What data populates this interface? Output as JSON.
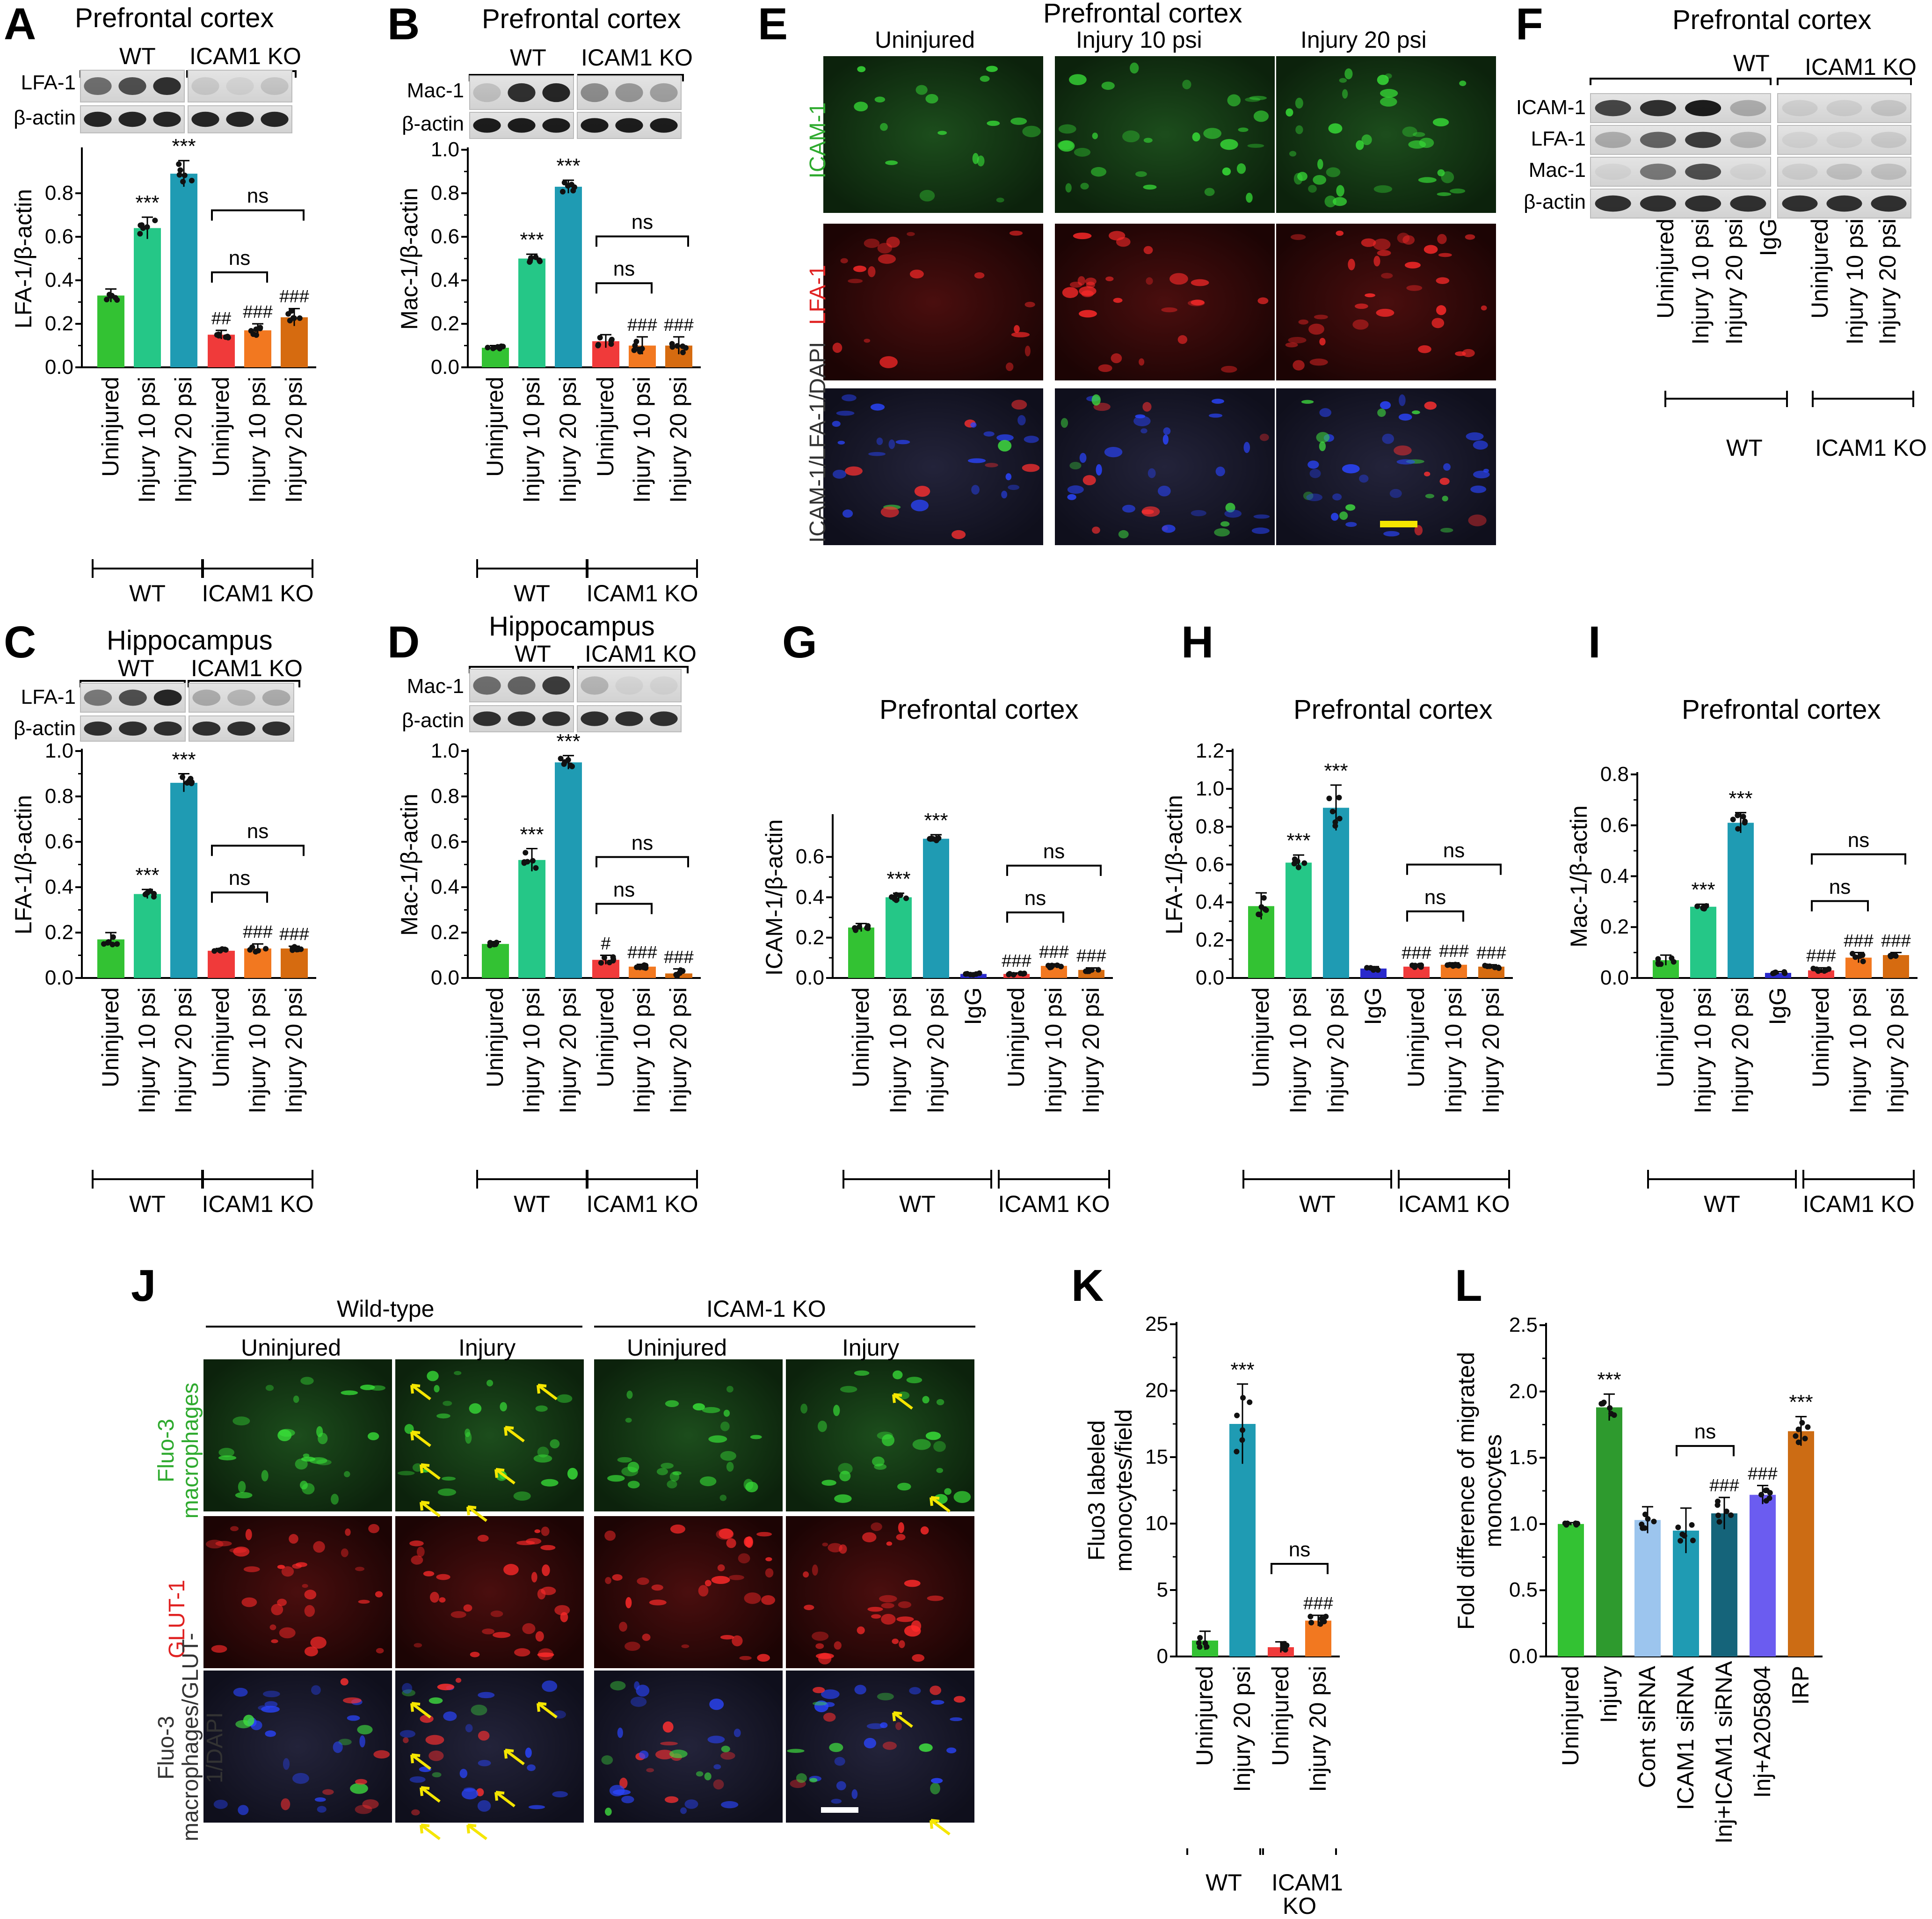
{
  "panels": {
    "A": {
      "label": "A",
      "title": "Prefrontal cortex",
      "groups": [
        "WT",
        "ICAM1 KO"
      ],
      "blots": [
        "LFA-1",
        "β-actin"
      ]
    },
    "B": {
      "label": "B",
      "title": "Prefrontal cortex",
      "groups": [
        "WT",
        "ICAM1 KO"
      ],
      "blots": [
        "Mac-1",
        "β-actin"
      ]
    },
    "C": {
      "label": "C",
      "title": "Hippocampus",
      "groups": [
        "WT",
        "ICAM1 KO"
      ],
      "blots": [
        "LFA-1",
        "β-actin"
      ]
    },
    "D": {
      "label": "D",
      "title": "Hippocampus",
      "groups": [
        "WT",
        "ICAM1 KO"
      ],
      "blots": [
        "Mac-1",
        "β-actin"
      ]
    },
    "E": {
      "label": "E",
      "title": "Prefrontal cortex",
      "columns": [
        "Uninjured",
        "Injury 10 psi",
        "Injury 20 psi"
      ],
      "rows": [
        "ICAM-1",
        "LFA-1",
        "ICAM-1/LFA-1/DAPI"
      ]
    },
    "F": {
      "label": "F",
      "title": "Prefrontal cortex",
      "groups": [
        "WT",
        "ICAM1 KO"
      ],
      "blots": [
        "ICAM-1",
        "LFA-1",
        "Mac-1",
        "β-actin"
      ],
      "lanes": [
        "Uninjured",
        "Injury 10 psi",
        "Injury 20 psi",
        "IgG",
        "Uninjured",
        "Injury 10 psi",
        "Injury 20 psi"
      ]
    },
    "G": {
      "label": "G"
    },
    "H": {
      "label": "H"
    },
    "I": {
      "label": "I"
    },
    "J": {
      "label": "J",
      "groups": [
        "Wild-type",
        "ICAM-1 KO"
      ],
      "columns": [
        "Uninjured",
        "Injury",
        "Uninjured",
        "Injury"
      ],
      "rows": [
        "Fluo-3 macrophages",
        "GLUT-1",
        "Fluo-3 macrophages/GLUT-1/DAPI"
      ]
    },
    "K": {
      "label": "K"
    },
    "L": {
      "label": "L"
    }
  },
  "colors": {
    "green": "#33c233",
    "mint": "#25c787",
    "teal": "#1f9bb3",
    "red": "#f03a3a",
    "orange": "#f27820",
    "brown": "#d66b10",
    "blue": "#2a2acc",
    "darkgreen": "#2e9a2e",
    "lightblue": "#9cc5ee",
    "darkteal": "#15647a",
    "violet": "#6b5cf0",
    "rust": "#cc6c14"
  },
  "chart_data": [
    {
      "panel": "A",
      "type": "bar",
      "ylabel": "LFA-1/β-actin",
      "ylim": [
        0,
        1.0
      ],
      "yticks": [
        "0.0",
        "0.2",
        "0.4",
        "0.6",
        "0.8"
      ],
      "categories": [
        "Uninjured",
        "Injury 10 psi",
        "Injury 20 psi",
        "Uninjured",
        "Injury 10 psi",
        "Injury 20 psi"
      ],
      "values": [
        0.33,
        0.64,
        0.89,
        0.15,
        0.17,
        0.23
      ],
      "errors": [
        0.03,
        0.05,
        0.06,
        0.02,
        0.03,
        0.04
      ],
      "colors": [
        "green",
        "mint",
        "teal",
        "red",
        "orange",
        "brown"
      ],
      "annotations": [
        "",
        "***",
        "***",
        "##",
        "###",
        "###"
      ],
      "groups": [
        {
          "name": "WT",
          "start": 0,
          "end": 2
        },
        {
          "name": "ICAM1 KO",
          "start": 3,
          "end": 5
        }
      ],
      "brackets": [
        {
          "from": 3,
          "to": 4,
          "label": "ns"
        },
        {
          "from": 3,
          "to": 5,
          "label": "ns"
        }
      ]
    },
    {
      "panel": "B",
      "type": "bar",
      "ylabel": "Mac-1/β-actin",
      "ylim": [
        0,
        1.0
      ],
      "yticks": [
        "0.0",
        "0.2",
        "0.4",
        "0.6",
        "0.8",
        "1.0"
      ],
      "categories": [
        "Uninjured",
        "Injury 10 psi",
        "Injury 20 psi",
        "Uninjured",
        "Injury 10 psi",
        "Injury 20 psi"
      ],
      "values": [
        0.09,
        0.5,
        0.83,
        0.12,
        0.1,
        0.1
      ],
      "errors": [
        0.01,
        0.02,
        0.03,
        0.03,
        0.04,
        0.04
      ],
      "colors": [
        "green",
        "mint",
        "teal",
        "red",
        "orange",
        "brown"
      ],
      "annotations": [
        "",
        "***",
        "***",
        "",
        "###",
        "###"
      ],
      "groups": [
        {
          "name": "WT",
          "start": 0,
          "end": 2
        },
        {
          "name": "ICAM1 KO",
          "start": 3,
          "end": 5
        }
      ],
      "brackets": [
        {
          "from": 3,
          "to": 4,
          "label": "ns"
        },
        {
          "from": 3,
          "to": 5,
          "label": "ns"
        }
      ]
    },
    {
      "panel": "C",
      "type": "bar",
      "ylabel": "LFA-1/β-actin",
      "ylim": [
        0,
        1.0
      ],
      "yticks": [
        "0.0",
        "0.2",
        "0.4",
        "0.6",
        "0.8",
        "1.0"
      ],
      "categories": [
        "Uninjured",
        "Injury 10 psi",
        "Injury 20 psi",
        "Uninjured",
        "Injury 10 psi",
        "Injury 20 psi"
      ],
      "values": [
        0.17,
        0.37,
        0.86,
        0.12,
        0.13,
        0.13
      ],
      "errors": [
        0.03,
        0.02,
        0.04,
        0.01,
        0.02,
        0.01
      ],
      "colors": [
        "green",
        "mint",
        "teal",
        "red",
        "orange",
        "brown"
      ],
      "annotations": [
        "",
        "***",
        "***",
        "",
        "###",
        "###"
      ],
      "groups": [
        {
          "name": "WT",
          "start": 0,
          "end": 2
        },
        {
          "name": "ICAM1 KO",
          "start": 3,
          "end": 5
        }
      ],
      "brackets": [
        {
          "from": 3,
          "to": 4,
          "label": "ns"
        },
        {
          "from": 3,
          "to": 5,
          "label": "ns"
        }
      ]
    },
    {
      "panel": "D",
      "type": "bar",
      "ylabel": "Mac-1/β-actin",
      "ylim": [
        0,
        1.0
      ],
      "yticks": [
        "0.0",
        "0.2",
        "0.4",
        "0.6",
        "0.8",
        "1.0"
      ],
      "categories": [
        "Uninjured",
        "Injury 10 psi",
        "Injury 20 psi",
        "Uninjured",
        "Injury 10 psi",
        "Injury 20 psi"
      ],
      "values": [
        0.15,
        0.52,
        0.95,
        0.08,
        0.05,
        0.02
      ],
      "errors": [
        0.01,
        0.05,
        0.03,
        0.02,
        0.01,
        0.02
      ],
      "colors": [
        "green",
        "mint",
        "teal",
        "red",
        "orange",
        "brown"
      ],
      "annotations": [
        "",
        "***",
        "***",
        "#",
        "###",
        "###"
      ],
      "groups": [
        {
          "name": "WT",
          "start": 0,
          "end": 2
        },
        {
          "name": "ICAM1 KO",
          "start": 3,
          "end": 5
        }
      ],
      "brackets": [
        {
          "from": 3,
          "to": 4,
          "label": "ns"
        },
        {
          "from": 3,
          "to": 5,
          "label": "ns"
        }
      ]
    },
    {
      "panel": "G",
      "type": "bar",
      "title": "Prefrontal cortex",
      "ylabel": "ICAM-1/β-actin",
      "ylim": [
        0,
        0.8
      ],
      "yticks": [
        "0.0",
        "0.2",
        "0.4",
        "0.6"
      ],
      "categories": [
        "Uninjured",
        "Injury 10 psi",
        "Injury 20 psi",
        "IgG",
        "Uninjured",
        "Injury 10 psi",
        "Injury 20 psi"
      ],
      "values": [
        0.25,
        0.4,
        0.69,
        0.02,
        0.02,
        0.06,
        0.04
      ],
      "errors": [
        0.02,
        0.02,
        0.02,
        0.005,
        0.005,
        0.01,
        0.01
      ],
      "colors": [
        "green",
        "mint",
        "teal",
        "blue",
        "red",
        "orange",
        "brown"
      ],
      "annotations": [
        "",
        "***",
        "***",
        "",
        "###",
        "###",
        "###"
      ],
      "groups": [
        {
          "name": "WT",
          "start": 0,
          "end": 3
        },
        {
          "name": "ICAM1 KO",
          "start": 4,
          "end": 6
        }
      ],
      "brackets": [
        {
          "from": 4,
          "to": 5,
          "label": "ns"
        },
        {
          "from": 4,
          "to": 6,
          "label": "ns"
        }
      ]
    },
    {
      "panel": "H",
      "type": "bar",
      "title": "Prefrontal cortex",
      "ylabel": "LFA-1/β-actin",
      "ylim": [
        0,
        1.2
      ],
      "yticks": [
        "0.0",
        "0.2",
        "0.4",
        "0.6",
        "0.8",
        "1.0",
        "1.2"
      ],
      "categories": [
        "Uninjured",
        "Injury 10 psi",
        "Injury 20 psi",
        "IgG",
        "Uninjured",
        "Injury 10 psi",
        "Injury 20 psi"
      ],
      "values": [
        0.38,
        0.61,
        0.9,
        0.05,
        0.06,
        0.07,
        0.06
      ],
      "errors": [
        0.07,
        0.04,
        0.12,
        0.01,
        0.01,
        0.01,
        0.01
      ],
      "colors": [
        "green",
        "mint",
        "teal",
        "blue",
        "red",
        "orange",
        "brown"
      ],
      "annotations": [
        "",
        "***",
        "***",
        "",
        "###",
        "###",
        "###"
      ],
      "groups": [
        {
          "name": "WT",
          "start": 0,
          "end": 3
        },
        {
          "name": "ICAM1 KO",
          "start": 4,
          "end": 6
        }
      ],
      "brackets": [
        {
          "from": 4,
          "to": 5,
          "label": "ns"
        },
        {
          "from": 4,
          "to": 6,
          "label": "ns"
        }
      ]
    },
    {
      "panel": "I",
      "type": "bar",
      "title": "Prefrontal cortex",
      "ylabel": "Mac-1/β-actin",
      "ylim": [
        0,
        0.8
      ],
      "yticks": [
        "0.0",
        "0.2",
        "0.4",
        "0.6",
        "0.8"
      ],
      "categories": [
        "Uninjured",
        "Injury 10 psi",
        "Injury 20 psi",
        "IgG",
        "Uninjured",
        "Injury 10 psi",
        "Injury 20 psi"
      ],
      "values": [
        0.07,
        0.28,
        0.61,
        0.02,
        0.03,
        0.08,
        0.09
      ],
      "errors": [
        0.02,
        0.01,
        0.04,
        0.005,
        0.01,
        0.02,
        0.01
      ],
      "colors": [
        "green",
        "mint",
        "teal",
        "blue",
        "red",
        "orange",
        "brown"
      ],
      "annotations": [
        "",
        "***",
        "***",
        "",
        "###",
        "###",
        "###"
      ],
      "groups": [
        {
          "name": "WT",
          "start": 0,
          "end": 3
        },
        {
          "name": "ICAM1 KO",
          "start": 4,
          "end": 6
        }
      ],
      "brackets": [
        {
          "from": 4,
          "to": 5,
          "label": "ns"
        },
        {
          "from": 4,
          "to": 6,
          "label": "ns"
        }
      ]
    },
    {
      "panel": "K",
      "type": "bar",
      "ylabel": "Fluo3 labeled monocytes/field",
      "ylim": [
        0,
        25
      ],
      "yticks": [
        "0",
        "5",
        "10",
        "15",
        "20",
        "25"
      ],
      "categories": [
        "Uninjured",
        "Injury 20 psi",
        "Uninjured",
        "Injury 20 psi"
      ],
      "values": [
        1.2,
        17.5,
        0.7,
        2.7
      ],
      "errors": [
        0.7,
        3.0,
        0.4,
        0.4
      ],
      "colors": [
        "green",
        "teal",
        "red",
        "orange"
      ],
      "annotations": [
        "",
        "***",
        "",
        "###"
      ],
      "groups": [
        {
          "name": "WT",
          "start": 0,
          "end": 1
        },
        {
          "name": "ICAM1 KO",
          "start": 2,
          "end": 3
        }
      ],
      "brackets": [
        {
          "from": 2,
          "to": 3,
          "label": "ns"
        }
      ]
    },
    {
      "panel": "L",
      "type": "bar",
      "ylabel": "Fold difference of migrated monocytes",
      "ylim": [
        0,
        2.5
      ],
      "yticks": [
        "0.0",
        "0.5",
        "1.0",
        "1.5",
        "2.0",
        "2.5"
      ],
      "categories": [
        "Uninjured",
        "Injury",
        "Cont siRNA",
        "ICAM1 siRNA",
        "Inj+ICAM1 siRNA",
        "Inj+A205804",
        "IRP"
      ],
      "values": [
        1.0,
        1.88,
        1.03,
        0.95,
        1.08,
        1.22,
        1.7
      ],
      "errors": [
        0.01,
        0.1,
        0.1,
        0.17,
        0.12,
        0.07,
        0.11
      ],
      "colors": [
        "green",
        "darkgreen",
        "lightblue",
        "teal",
        "darkteal",
        "violet",
        "rust"
      ],
      "annotations": [
        "",
        "***",
        "",
        "",
        "###",
        "###",
        "***"
      ],
      "groups": [],
      "brackets": [
        {
          "from": 3,
          "to": 4,
          "label": "ns"
        }
      ]
    }
  ]
}
